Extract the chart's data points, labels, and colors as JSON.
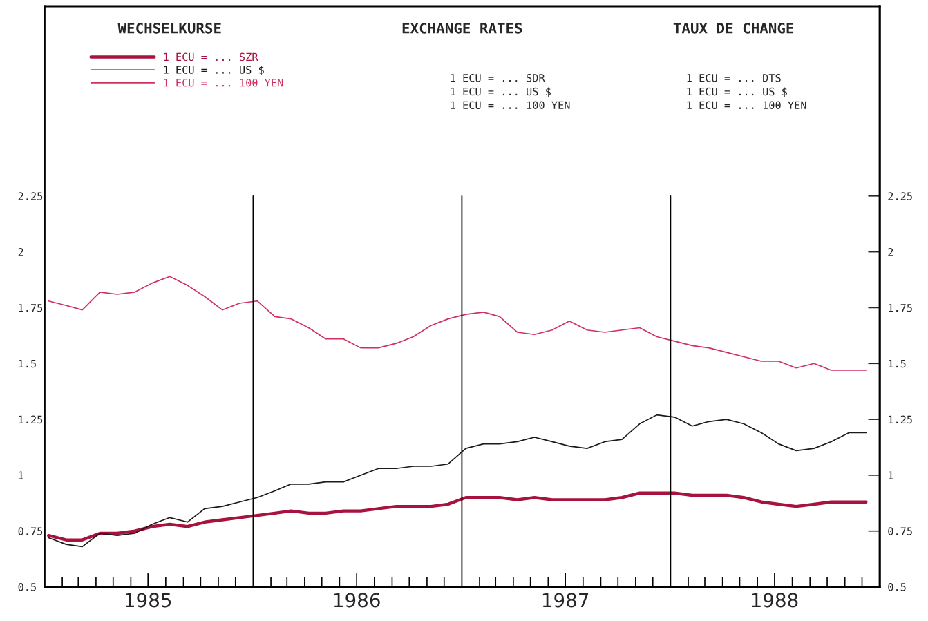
{
  "chart_data": {
    "type": "line",
    "title": "WECHSELKURSE",
    "annotations": [
      "EXCHANGE RATES",
      "TAUX DE CHANGE",
      "1 ECU = ... SDR",
      "1 ECU = ... US $",
      "1 ECU = ... 100 YEN",
      "1 ECU = ... DTS",
      "1 ECU = ... US $",
      "1 ECU = ... 100 YEN"
    ],
    "x": [
      "1985-01-08",
      "1985-02-08",
      "1985-03-08",
      "1985-04-08",
      "1985-05-08",
      "1985-06-08",
      "1985-07-08",
      "1985-08-08",
      "1985-09-08",
      "1985-10-08",
      "1985-11-08",
      "1985-12-08",
      "1986-01-08",
      "1986-02-08",
      "1986-03-08",
      "1986-04-08",
      "1986-05-08",
      "1986-06-08",
      "1986-07-08",
      "1986-08-08",
      "1986-09-08",
      "1986-10-08",
      "1986-11-08",
      "1986-12-08",
      "1987-01-08",
      "1987-02-08",
      "1987-03-08",
      "1987-04-08",
      "1987-05-08",
      "1987-06-08",
      "1987-07-08",
      "1987-08-08",
      "1987-09-08",
      "1987-10-08",
      "1987-11-08",
      "1987-12-08",
      "1988-01-08",
      "1988-02-08",
      "1988-03-08",
      "1988-04-08",
      "1988-05-08",
      "1988-06-08",
      "1988-07-08",
      "1988-08-08",
      "1988-09-08",
      "1988-10-08",
      "1988-11-08",
      "1988-12-08"
    ],
    "series": [
      {
        "name": "1 ECU = ... SZR",
        "color": "#a8123e",
        "values": [
          0.73,
          0.71,
          0.71,
          0.74,
          0.74,
          0.75,
          0.77,
          0.78,
          0.77,
          0.79,
          0.8,
          0.81,
          0.82,
          0.83,
          0.84,
          0.83,
          0.83,
          0.84,
          0.84,
          0.85,
          0.86,
          0.86,
          0.86,
          0.87,
          0.9,
          0.9,
          0.9,
          0.89,
          0.9,
          0.89,
          0.89,
          0.89,
          0.89,
          0.9,
          0.92,
          0.92,
          0.92,
          0.91,
          0.91,
          0.91,
          0.9,
          0.88,
          0.87,
          0.86,
          0.87,
          0.88,
          0.88,
          0.88
        ]
      },
      {
        "name": "1 ECU = ... US $",
        "color": "#1a1a1a",
        "values": [
          0.72,
          0.69,
          0.68,
          0.74,
          0.73,
          0.74,
          0.78,
          0.81,
          0.79,
          0.85,
          0.86,
          0.88,
          0.9,
          0.93,
          0.96,
          0.96,
          0.97,
          0.97,
          1.0,
          1.03,
          1.03,
          1.04,
          1.04,
          1.05,
          1.12,
          1.14,
          1.14,
          1.15,
          1.17,
          1.15,
          1.13,
          1.12,
          1.15,
          1.16,
          1.23,
          1.27,
          1.26,
          1.22,
          1.24,
          1.25,
          1.23,
          1.19,
          1.14,
          1.11,
          1.12,
          1.15,
          1.19,
          1.19
        ]
      },
      {
        "name": "1 ECU = ... 100 YEN",
        "color": "#d0305e",
        "values": [
          1.78,
          1.76,
          1.74,
          1.82,
          1.81,
          1.82,
          1.86,
          1.89,
          1.85,
          1.8,
          1.74,
          1.77,
          1.78,
          1.71,
          1.7,
          1.66,
          1.61,
          1.61,
          1.57,
          1.57,
          1.59,
          1.62,
          1.67,
          1.7,
          1.72,
          1.73,
          1.71,
          1.64,
          1.63,
          1.65,
          1.69,
          1.65,
          1.64,
          1.65,
          1.66,
          1.62,
          1.6,
          1.58,
          1.57,
          1.55,
          1.53,
          1.51,
          1.51,
          1.48,
          1.5,
          1.47,
          1.47,
          1.47
        ]
      }
    ],
    "xlim": [
      "1985-01-01",
      "1989-01-01"
    ],
    "xticks": [
      {
        "value": "1985-02",
        "label": null
      },
      {
        "value": "1985-03",
        "label": null
      },
      {
        "value": "1985-04",
        "label": null
      },
      {
        "value": "1985-05",
        "label": null
      },
      {
        "value": "1985-06",
        "label": null
      },
      {
        "value": "1985-07",
        "label": "1985"
      },
      {
        "value": "1985-08",
        "label": null
      },
      {
        "value": "1985-09",
        "label": null
      },
      {
        "value": "1985-10",
        "label": null
      },
      {
        "value": "1985-11",
        "label": null
      },
      {
        "value": "1985-12",
        "label": null
      },
      {
        "value": "1986-02",
        "label": null
      },
      {
        "value": "1986-03",
        "label": null
      },
      {
        "value": "1986-04",
        "label": null
      },
      {
        "value": "1986-05",
        "label": null
      },
      {
        "value": "1986-06",
        "label": null
      },
      {
        "value": "1986-07",
        "label": "1986"
      },
      {
        "value": "1986-08",
        "label": null
      },
      {
        "value": "1986-09",
        "label": null
      },
      {
        "value": "1986-10",
        "label": null
      },
      {
        "value": "1986-11",
        "label": null
      },
      {
        "value": "1986-12",
        "label": null
      },
      {
        "value": "1987-02",
        "label": null
      },
      {
        "value": "1987-03",
        "label": null
      },
      {
        "value": "1987-04",
        "label": null
      },
      {
        "value": "1987-05",
        "label": null
      },
      {
        "value": "1987-06",
        "label": null
      },
      {
        "value": "1987-07",
        "label": "1987"
      },
      {
        "value": "1987-08",
        "label": null
      },
      {
        "value": "1987-09",
        "label": null
      },
      {
        "value": "1987-10",
        "label": null
      },
      {
        "value": "1987-11",
        "label": null
      },
      {
        "value": "1987-12",
        "label": null
      },
      {
        "value": "1988-02",
        "label": null
      },
      {
        "value": "1988-03",
        "label": null
      },
      {
        "value": "1988-04",
        "label": null
      },
      {
        "value": "1988-05",
        "label": null
      },
      {
        "value": "1988-06",
        "label": null
      },
      {
        "value": "1988-07",
        "label": "1988"
      },
      {
        "value": "1988-08",
        "label": null
      },
      {
        "value": "1988-09",
        "label": null
      },
      {
        "value": "1988-10",
        "label": null
      },
      {
        "value": "1988-11",
        "label": null
      },
      {
        "value": "1988-12",
        "label": null
      }
    ],
    "ylim": [
      0.5,
      3.1
    ],
    "yticks": [
      0.5,
      0.75,
      1,
      1.25,
      1.5,
      1.75,
      2,
      2.25
    ],
    "y2lim": [
      0.5,
      3.1
    ],
    "y2ticks": [
      0.5,
      0.75,
      1,
      1.25,
      1.5,
      1.75,
      2,
      2.25
    ],
    "ref_lines": [
      {
        "axis": "x",
        "value": "1986-01-01",
        "color": "#000000"
      },
      {
        "axis": "x",
        "value": "1987-01-01",
        "color": "#000000"
      },
      {
        "axis": "x",
        "value": "1988-01-01",
        "color": "#000000"
      }
    ],
    "grid": false,
    "legend": "top left",
    "marker": "none",
    "line_style": "solid"
  }
}
